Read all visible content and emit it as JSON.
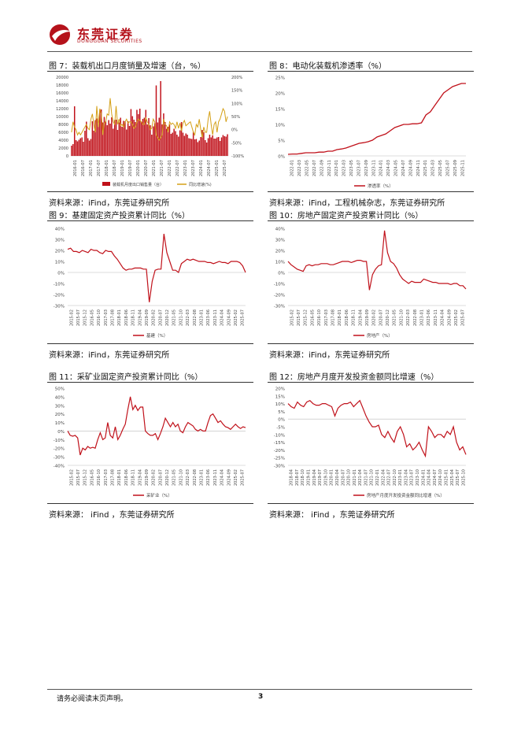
{
  "header": {
    "brand": "东莞证券",
    "brand_en": "DONGGUAN SECURITIES"
  },
  "colors": {
    "brand": "#b5121b",
    "line": "#c0111a",
    "gold": "#d4a017"
  },
  "figures": [
    {
      "title": "图 7：装载机出口月度销量及增速（台，%）",
      "source": "资料来源：iFind，东莞证券研究所",
      "chart_data": {
        "type": "bar+line",
        "ylim_left": [
          0,
          20000
        ],
        "left_ticks": [
          "20000",
          "18000",
          "16000",
          "14000",
          "12000",
          "10000",
          "8000",
          "6000",
          "4000",
          "2000",
          "0"
        ],
        "ylim_right": [
          -100,
          200
        ],
        "right_ticks": [
          "200%",
          "150%",
          "100%",
          "50%",
          "0%",
          "-50%",
          "-100%"
        ],
        "x_labels": [
          "2016-01",
          "2016-07",
          "2017-01",
          "2017-07",
          "2018-01",
          "2018-07",
          "2019-01",
          "2019-07",
          "2020-01",
          "2020-07",
          "2021-01",
          "2021-07",
          "2022-01",
          "2022-07",
          "2023-01",
          "2023-07",
          "2024-01",
          "2024-07",
          "2025-01",
          "2025-07"
        ],
        "series": [
          {
            "name": "装载机月度出口销售量（台）",
            "type": "bar",
            "values": [
              2600,
              3000,
              12600,
              4000,
              3700,
              4100,
              4500,
              4700,
              3600,
              6400,
              8700,
              4500,
              3900,
              4300,
              8800,
              6400,
              9100,
              9500,
              8000,
              11600,
              11800,
              8500,
              9900,
              8800,
              7800,
              9100,
              8200,
              9800,
              6900,
              9100,
              9200,
              6600,
              8500,
              9700,
              7400,
              8900,
              8800,
              6700,
              8800,
              7600,
              11900,
              10100,
              9200,
              8600,
              11700,
              10600,
              12000,
              8600,
              9400,
              9700,
              11700,
              8000,
              9600,
              7800,
              5400,
              7500,
              8300,
              17900,
              8500,
              9700,
              19000,
              8000,
              10800,
              8600,
              6900,
              7400,
              8000,
              5600,
              5900,
              6900,
              6300,
              5400,
              4900,
              6500,
              8600,
              5900,
              5100,
              5700,
              5400,
              4500,
              4400,
              4300,
              6100,
              4200,
              4300,
              3500,
              3900,
              4800,
              6600,
              6000,
              4000,
              3400,
              4500,
              5400,
              4700,
              5200,
              4400,
              4400,
              4700,
              4800,
              3800,
              4700,
              5300,
              5000,
              4900,
              5500
            ]
          },
          {
            "name": "同比增速(%)",
            "type": "line",
            "values": [
              -10,
              30,
              10,
              0,
              -20,
              -10,
              -20,
              -10,
              0,
              10,
              20,
              5,
              0,
              40,
              60,
              20,
              -10,
              90,
              10,
              80,
              60,
              -20,
              25,
              30,
              60,
              55,
              120,
              60,
              30,
              20,
              90,
              20,
              40,
              15,
              20,
              10,
              30,
              40,
              25,
              30,
              30,
              20,
              5,
              10,
              30,
              40,
              35,
              30,
              20,
              20,
              45,
              30,
              20,
              0,
              5,
              40,
              30,
              -20,
              -30,
              -40,
              -30,
              -20,
              40,
              20,
              15,
              -10,
              30,
              20,
              25,
              20,
              5,
              30,
              5,
              25,
              -5,
              25,
              35,
              15,
              20,
              25,
              30,
              10,
              -10,
              -20,
              20,
              10,
              40,
              0,
              -30,
              10,
              -10,
              -10,
              40,
              70,
              20,
              -20,
              20,
              30,
              -10,
              30,
              40,
              60,
              80,
              70,
              30,
              50
            ]
          }
        ]
      }
    },
    {
      "title": "图 8：电动化装载机渗透率（%）",
      "source": "资料来源：iFind，工程机械杂志，东莞证券研究所",
      "chart_data": {
        "type": "line",
        "ylim": [
          0,
          25
        ],
        "y_ticks": [
          "25%",
          "20%",
          "15%",
          "10%",
          "5%",
          "0%"
        ],
        "x_labels": [
          "2022-01",
          "2022-03",
          "2022-05",
          "2022-07",
          "2022-09",
          "2022-11",
          "2023-01",
          "2023-03",
          "2023-05",
          "2023-07",
          "2023-09",
          "2023-11",
          "2024-01",
          "2024-03",
          "2024-05",
          "2024-07",
          "2024-09",
          "2024-11",
          "2025-01",
          "2025-03",
          "2025-05",
          "2025-07",
          "2025-09",
          "2025-11"
        ],
        "series": [
          {
            "name": "渗透率（%）",
            "values": [
              0.5,
              0.6,
              0.6,
              0.8,
              1.0,
              1.0,
              1.0,
              1.2,
              1.2,
              1.5,
              1.5,
              2.0,
              2.2,
              2.5,
              3.0,
              3.5,
              4.0,
              4.2,
              4.5,
              5.0,
              6.0,
              6.5,
              7.0,
              8.0,
              9.0,
              9.5,
              10.0,
              10.0,
              10.2,
              10.2,
              10.5,
              13.0,
              14.0,
              16.0,
              18.0,
              20.0,
              21.0,
              22.0,
              22.5,
              23.0,
              23.0
            ]
          }
        ]
      }
    },
    {
      "title": "图 9：基建固定资产投资累计同比（%）",
      "source": "资料来源：iFind，东莞证券研究所",
      "chart_data": {
        "type": "line",
        "ylim": [
          -30,
          40
        ],
        "y_ticks": [
          "40%",
          "30%",
          "20%",
          "10%",
          "0%",
          "-10%",
          "-20%",
          "-30%"
        ],
        "x_labels": [
          "2015-02",
          "2015-07",
          "2015-12",
          "2016-05",
          "2016-10",
          "2017-03",
          "2017-08",
          "2018-01",
          "2018-06",
          "2018-11",
          "2019-04",
          "2019-09",
          "2020-02",
          "2020-07",
          "2020-12",
          "2021-05",
          "2021-10",
          "2022-03",
          "2022-08",
          "2023-01",
          "2023-06",
          "2023-11",
          "2024-04",
          "2024-09",
          "2025-02",
          "2025-07"
        ],
        "series": [
          {
            "name": "基建（%）",
            "values": [
              21,
              22,
              19,
              19,
              18,
              20,
              19,
              18,
              21,
              20,
              20,
              18,
              17,
              20,
              19,
              19,
              15,
              12,
              8,
              4,
              2,
              3,
              3,
              4,
              4,
              4,
              3,
              3,
              -27,
              -8,
              2,
              3,
              3,
              35,
              18,
              10,
              2,
              2,
              0,
              8,
              10,
              12,
              11,
              12,
              11,
              10,
              10,
              10,
              9,
              9,
              8,
              9,
              10,
              9,
              9,
              8,
              10,
              10,
              10,
              9,
              6,
              0
            ]
          }
        ]
      }
    },
    {
      "title": "图 10：房地产固定资产投资累计同比（%）",
      "source": "资料来源：iFind，东莞证券研究所",
      "chart_data": {
        "type": "line",
        "ylim": [
          -30,
          40
        ],
        "y_ticks": [
          "40%",
          "30%",
          "20%",
          "10%",
          "0%",
          "-10%",
          "-20%",
          "-30%"
        ],
        "x_labels": [
          "2015-02",
          "2015-07",
          "2015-12",
          "2016-05",
          "2016-10",
          "2017-03",
          "2017-08",
          "2018-01",
          "2018-06",
          "2018-11",
          "2019-04",
          "2019-09",
          "2020-02",
          "2020-07",
          "2020-12",
          "2021-05",
          "2021-10",
          "2022-03",
          "2022-08",
          "2023-01",
          "2023-06",
          "2023-11",
          "2024-04",
          "2024-09",
          "2025-02",
          "2025-07"
        ],
        "series": [
          {
            "name": "房地产（%）",
            "values": [
              10,
              7,
              5,
              3,
              2,
              1,
              6,
              7,
              6,
              7,
              7,
              8,
              8,
              8,
              7,
              7,
              8,
              9,
              10,
              10,
              10,
              9,
              10,
              11,
              11,
              10,
              10,
              -16,
              -2,
              3,
              6,
              7,
              38,
              18,
              10,
              8,
              4,
              -2,
              -6,
              -8,
              -10,
              -8,
              -9,
              -9,
              -9,
              -6,
              -7,
              -8,
              -9,
              -9,
              -10,
              -10,
              -10,
              -10,
              -11,
              -10,
              -10,
              -12,
              -12,
              -15
            ]
          }
        ]
      }
    },
    {
      "title": "图 11：采矿业固定资产投资累计同比（%）",
      "source": "资料来源：  iFind ，东莞证券研究所",
      "chart_data": {
        "type": "line",
        "ylim": [
          -40,
          50
        ],
        "y_ticks": [
          "50%",
          "40%",
          "30%",
          "20%",
          "10%",
          "0%",
          "-10%",
          "-20%",
          "-30%",
          "-40%"
        ],
        "x_labels": [
          "2015-02",
          "2015-07",
          "2015-12",
          "2016-05",
          "2016-10",
          "2017-03",
          "2017-08",
          "2018-01",
          "2018-06",
          "2018-11",
          "2019-04",
          "2019-09",
          "2020-02",
          "2020-07",
          "2020-12",
          "2021-05",
          "2021-10",
          "2022-03",
          "2022-08",
          "2023-01",
          "2023-06",
          "2023-11",
          "2024-04",
          "2024-09",
          "2025-02",
          "2025-07"
        ],
        "series": [
          {
            "name": "采矿业（%）",
            "values": [
              0,
              -5,
              -6,
              -5,
              -8,
              -28,
              -20,
              -22,
              -18,
              -20,
              -19,
              -20,
              -10,
              -2,
              -10,
              -8,
              10,
              -5,
              -8,
              5,
              -10,
              -5,
              2,
              8,
              25,
              40,
              25,
              30,
              24,
              28,
              28,
              0,
              -3,
              -5,
              -5,
              -3,
              -10,
              -3,
              5,
              15,
              10,
              5,
              10,
              5,
              8,
              0,
              -2,
              5,
              10,
              8,
              6,
              2,
              0,
              2,
              0,
              0,
              10,
              18,
              20,
              15,
              10,
              12,
              8,
              5,
              4,
              2,
              5,
              8,
              5,
              3,
              5,
              4
            ]
          }
        ]
      }
    },
    {
      "title": "图 12：房地产月度开发投资金额同比增速（%）",
      "source": "资料来源：  iFind ，东莞证券研究所",
      "chart_data": {
        "type": "line",
        "ylim": [
          -30,
          20
        ],
        "y_ticks": [
          "20%",
          "15%",
          "10%",
          "5%",
          "0%",
          "-5%",
          "-10%",
          "-15%",
          "-20%",
          "-25%",
          "-30%"
        ],
        "x_labels": [
          "2018-04",
          "2018-07",
          "2018-10",
          "2019-01",
          "2019-04",
          "2019-07",
          "2019-10",
          "2020-01",
          "2020-04",
          "2020-07",
          "2020-10",
          "2021-01",
          "2021-04",
          "2021-07",
          "2021-10",
          "2022-01",
          "2022-04",
          "2022-07",
          "2022-10",
          "2023-01",
          "2023-04",
          "2023-07",
          "2023-10",
          "2024-01",
          "2024-04",
          "2024-07",
          "2024-10",
          "2025-01",
          "2025-04",
          "2025-07",
          "2025-10"
        ],
        "series": [
          {
            "name": "房地产月度开发投资金额同比增速（%）",
            "values": [
              10,
              8,
              7,
              11,
              9,
              8,
              11,
              12,
              10,
              9,
              9,
              10,
              10,
              9,
              8,
              2,
              7,
              9,
              10,
              10,
              11,
              8,
              10,
              12,
              7,
              2,
              -2,
              -5,
              -5,
              -4,
              -10,
              -12,
              -8,
              -12,
              -15,
              -8,
              -5,
              -10,
              -18,
              -16,
              -20,
              -18,
              -15,
              -20,
              -24,
              -5,
              -8,
              -12,
              -10,
              -10,
              -12,
              -8,
              -10,
              -5,
              -15,
              -20,
              -18,
              -23
            ]
          }
        ]
      }
    }
  ],
  "footer": {
    "note": "请务必阅读末页声明。",
    "page": "3"
  }
}
